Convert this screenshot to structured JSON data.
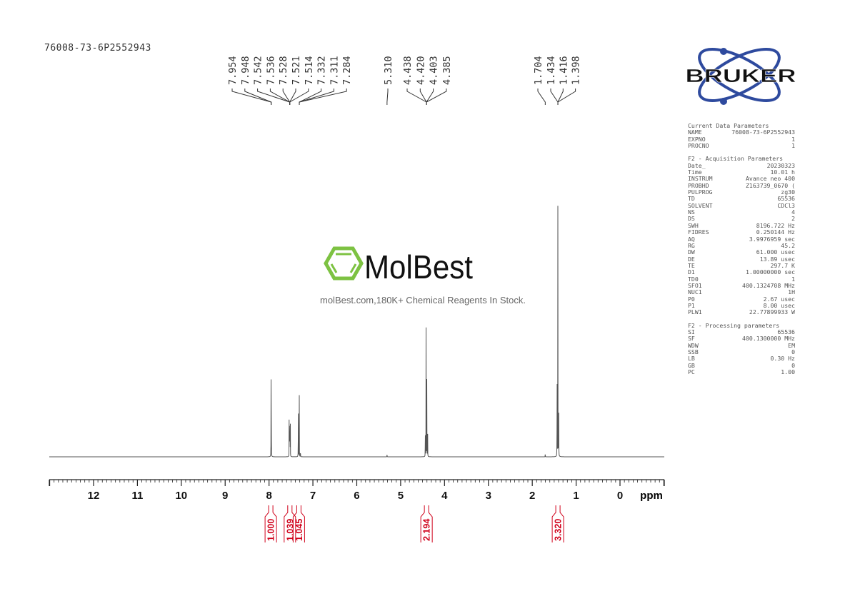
{
  "sample_name": "76008-73-6P2552943",
  "watermark": {
    "brand": "MolBest",
    "tagline": "molBest.com,180K+ Chemical Reagents In Stock.",
    "color": "#7dc242"
  },
  "logo": {
    "text": "BRUKER",
    "color": "#2e4a9e"
  },
  "parameters": {
    "current": {
      "title": "Current Data Parameters",
      "rows": [
        [
          "NAME",
          "76008-73-6P2552943"
        ],
        [
          "EXPNO",
          "1"
        ],
        [
          "PROCNO",
          "1"
        ]
      ]
    },
    "acquisition": {
      "title": "F2 - Acquisition Parameters",
      "rows": [
        [
          "Date_",
          "20230323"
        ],
        [
          "Time",
          "10.01 h"
        ],
        [
          "INSTRUM",
          "Avance neo 400"
        ],
        [
          "PROBHD",
          "Z163739_0670 ("
        ],
        [
          "PULPROG",
          "zg30"
        ],
        [
          "TD",
          "65536"
        ],
        [
          "SOLVENT",
          "CDCl3"
        ],
        [
          "NS",
          "4"
        ],
        [
          "DS",
          "2"
        ],
        [
          "SWH",
          "8196.722 Hz"
        ],
        [
          "FIDRES",
          "0.250144 Hz"
        ],
        [
          "AQ",
          "3.9976959 sec"
        ],
        [
          "RG",
          "45.2"
        ],
        [
          "DW",
          "61.000 usec"
        ],
        [
          "DE",
          "13.89 usec"
        ],
        [
          "TE",
          "297.7 K"
        ],
        [
          "D1",
          "1.00000000 sec"
        ],
        [
          "TD0",
          "1"
        ],
        [
          "SFO1",
          "400.1324708 MHz"
        ],
        [
          "NUC1",
          "1H"
        ],
        [
          "P0",
          "2.67 usec"
        ],
        [
          "P1",
          "8.00 usec"
        ],
        [
          "PLW1",
          "22.77899933 W"
        ]
      ]
    },
    "processing": {
      "title": "F2 - Processing parameters",
      "rows": [
        [
          "SI",
          "65536"
        ],
        [
          "SF",
          "400.1300000 MHz"
        ],
        [
          "WDW",
          "EM"
        ],
        [
          "SSB",
          "0"
        ],
        [
          "LB",
          "0.30 Hz"
        ],
        [
          "GB",
          "0"
        ],
        [
          "PC",
          "1.00"
        ]
      ]
    }
  },
  "chart_data": {
    "type": "line",
    "xlabel": "ppm",
    "xlim": [
      13,
      -1
    ],
    "x_reversed": true,
    "x_ticks": [
      "12",
      "11",
      "10",
      "9",
      "8",
      "7",
      "6",
      "5",
      "4",
      "3",
      "2",
      "1",
      "0"
    ],
    "spectrum_color": "#555555",
    "integral_color": "#d0021b",
    "peak_label_groups": [
      {
        "labels": [
          "7.954",
          "7.948"
        ],
        "target": 7.951
      },
      {
        "labels": [
          "7.542",
          "7.536",
          "7.528",
          "7.521",
          "7.514"
        ],
        "target": 7.528
      },
      {
        "labels": [
          "7.332",
          "7.311",
          "7.284"
        ],
        "target": 7.31
      },
      {
        "labels": [
          "5.310"
        ],
        "target": 5.31
      },
      {
        "labels": [
          "4.438",
          "4.420",
          "4.403",
          "4.385"
        ],
        "target": 4.411
      },
      {
        "labels": [
          "1.704"
        ],
        "target": 1.704
      },
      {
        "labels": [
          "1.434",
          "1.416",
          "1.398"
        ],
        "target": 1.416
      }
    ],
    "peaks": [
      {
        "ppm": 7.954,
        "height": 0.31
      },
      {
        "ppm": 7.948,
        "height": 0.3
      },
      {
        "ppm": 7.542,
        "height": 0.13
      },
      {
        "ppm": 7.536,
        "height": 0.17
      },
      {
        "ppm": 7.528,
        "height": 0.18
      },
      {
        "ppm": 7.521,
        "height": 0.16
      },
      {
        "ppm": 7.514,
        "height": 0.11
      },
      {
        "ppm": 7.332,
        "height": 0.33
      },
      {
        "ppm": 7.311,
        "height": 0.28
      },
      {
        "ppm": 7.284,
        "height": 0.04
      },
      {
        "ppm": 5.31,
        "height": 0.02
      },
      {
        "ppm": 4.438,
        "height": 0.16
      },
      {
        "ppm": 4.42,
        "height": 0.49
      },
      {
        "ppm": 4.403,
        "height": 0.49
      },
      {
        "ppm": 4.385,
        "height": 0.16
      },
      {
        "ppm": 1.704,
        "height": 0.02
      },
      {
        "ppm": 1.434,
        "height": 0.51
      },
      {
        "ppm": 1.416,
        "height": 1.0
      },
      {
        "ppm": 1.398,
        "height": 0.51
      }
    ],
    "integrals": [
      {
        "label": "1.000",
        "from": 8.02,
        "to": 7.9,
        "value": 1.0
      },
      {
        "label": "1.039",
        "from": 7.6,
        "to": 7.45,
        "value": 1.039
      },
      {
        "label": "1.045",
        "from": 7.4,
        "to": 7.24,
        "value": 1.045
      },
      {
        "label": "2.194",
        "from": 4.5,
        "to": 4.32,
        "value": 2.194
      },
      {
        "label": "3.320",
        "from": 1.5,
        "to": 1.33,
        "value": 3.32
      }
    ]
  }
}
